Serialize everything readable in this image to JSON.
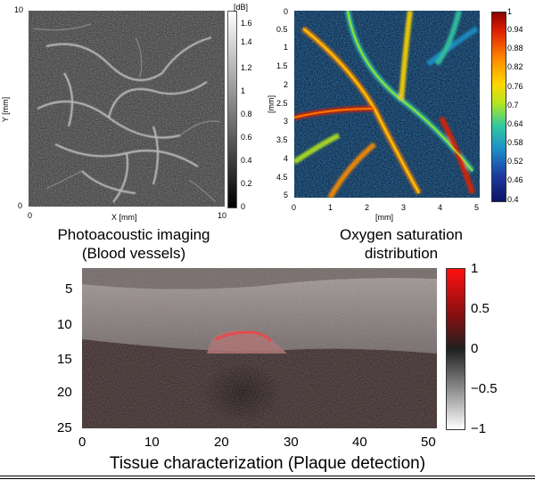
{
  "panel_pa": {
    "colorbar_unit": "[dB]",
    "colorbar_ticks": [
      "1.6",
      "1.4",
      "1.2",
      "1",
      "0.8",
      "0.6",
      "0.4",
      "0.2",
      "0"
    ],
    "y_ticks": [
      "10",
      "0"
    ],
    "x_ticks": [
      "0",
      "10"
    ],
    "xlabel": "X [mm]",
    "ylabel": "Y [mm]",
    "caption_line1": "Photoacoustic imaging",
    "caption_line2": "(Blood vessels)"
  },
  "panel_so2": {
    "colorbar_ticks": [
      "1",
      "0.94",
      "0.88",
      "0.82",
      "0.76",
      "0.7",
      "0.64",
      "0.58",
      "0.52",
      "0.46",
      "0.4"
    ],
    "y_ticks": [
      "0",
      "0.5",
      "1",
      "1.5",
      "2",
      "2.5",
      "3",
      "3.5",
      "4",
      "4.5",
      "5"
    ],
    "x_ticks": [
      "0",
      "1",
      "2",
      "3",
      "4",
      "5"
    ],
    "xlabel": "[mm]",
    "ylabel": "[mm]",
    "caption_line1": "Oxygen saturation",
    "caption_line2": "distribution"
  },
  "panel_tc": {
    "y_ticks": [
      "5",
      "10",
      "15",
      "20",
      "25"
    ],
    "x_ticks": [
      "0",
      "10",
      "20",
      "30",
      "40",
      "50"
    ],
    "colorbar_ticks": [
      "1",
      "0.5",
      "0",
      "−0.5",
      "−1"
    ],
    "caption": "Tissue characterization (Plaque detection)"
  },
  "colors": {
    "so2_colormap": [
      "#8b0000",
      "#e02000",
      "#ff8c00",
      "#ffd700",
      "#b4e61e",
      "#32c8a0",
      "#1e90c8",
      "#1e3ca0",
      "#0a1464"
    ],
    "tc_colormap": [
      "#ff1010",
      "#801010",
      "#202020",
      "#9a9a9a",
      "#ffffff"
    ]
  }
}
